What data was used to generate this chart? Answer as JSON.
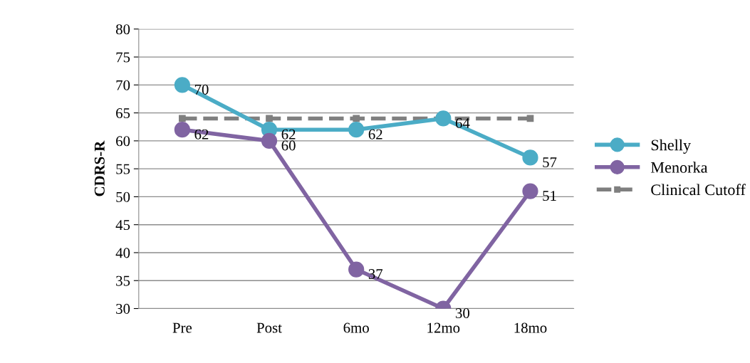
{
  "chart_data": {
    "type": "line",
    "ylabel": "CDRS-R",
    "categories": [
      "Pre",
      "Post",
      "6mo",
      "12mo",
      "18mo"
    ],
    "series": [
      {
        "name": "Shelly",
        "color": "#4bacc6",
        "values": [
          70,
          62,
          62,
          64,
          57
        ],
        "value_labels": [
          "70",
          "62",
          "62",
          "64",
          "57"
        ]
      },
      {
        "name": "Menorka",
        "color": "#8064a2",
        "values": [
          62,
          60,
          37,
          30,
          51
        ],
        "value_labels": [
          "62",
          "60",
          "37",
          "30",
          "51"
        ]
      },
      {
        "name": "Clinical Cutoff",
        "color": "#7f7f7f",
        "values": [
          64,
          64,
          64,
          64,
          64
        ],
        "line_style": "dashed",
        "marker": "square"
      }
    ],
    "ylim": [
      30,
      80
    ],
    "yticks": [
      30,
      35,
      40,
      45,
      50,
      55,
      60,
      65,
      70,
      75,
      80
    ],
    "grid": "y",
    "legend": "right",
    "marker": "circle",
    "line_style": "solid"
  }
}
